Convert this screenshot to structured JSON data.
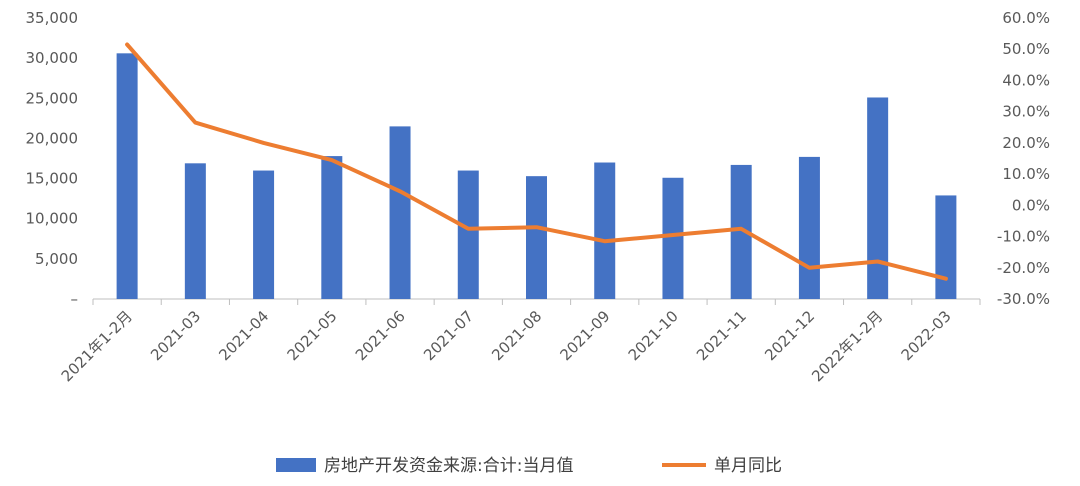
{
  "chart_data": {
    "type": "bar",
    "categories": [
      "2021年1-2月",
      "2021-03",
      "2021-04",
      "2021-05",
      "2021-06",
      "2021-07",
      "2021-08",
      "2021-09",
      "2021-10",
      "2021-11",
      "2021-12",
      "2022年1-2月",
      "2022-03"
    ],
    "series": [
      {
        "name": "房地产开发资金来源:合计:当月值",
        "type": "bar",
        "axis": "left",
        "color": "#4472C4",
        "values": [
          30600,
          16900,
          16000,
          17800,
          21500,
          16000,
          15300,
          17000,
          15100,
          16700,
          17700,
          25100,
          12900
        ]
      },
      {
        "name": "单月同比",
        "type": "line",
        "axis": "right",
        "color": "#ED7D31",
        "values": [
          51.5,
          26.5,
          20.0,
          14.5,
          4.5,
          -7.5,
          -7.0,
          -11.5,
          -9.5,
          -7.5,
          -20.0,
          -18.0,
          -23.5
        ]
      }
    ],
    "y_left": {
      "ylim": [
        0,
        35000
      ],
      "ticks": [
        0,
        5000,
        10000,
        15000,
        20000,
        25000,
        30000,
        35000
      ],
      "tick_labels": [
        "–",
        "5,000",
        "10,000",
        "15,000",
        "20,000",
        "25,000",
        "30,000",
        "35,000"
      ]
    },
    "y_right": {
      "ylim": [
        -30,
        60
      ],
      "ticks": [
        -30,
        -20,
        -10,
        0,
        10,
        20,
        30,
        40,
        50,
        60
      ],
      "tick_labels": [
        "-30.0%",
        "-20.0%",
        "-10.0%",
        "0.0%",
        "10.0%",
        "20.0%",
        "30.0%",
        "40.0%",
        "50.0%",
        "60.0%"
      ]
    },
    "grid": false,
    "legend_position": "bottom"
  }
}
